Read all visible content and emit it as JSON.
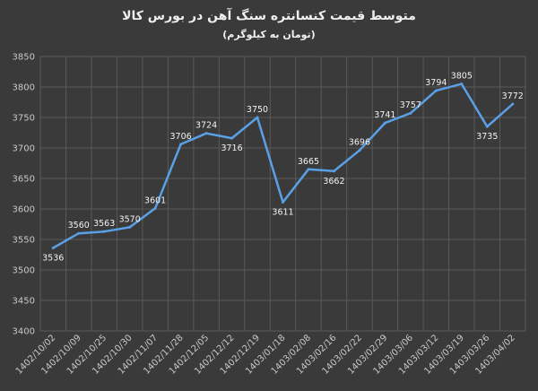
{
  "chart_data": {
    "type": "line",
    "title": "متوسط قیمت کنسانتره سنگ آهن در بورس کالا",
    "subtitle": "(تومان به کیلوگرم)",
    "xlabel": "",
    "ylabel": "",
    "ylim": [
      3400,
      3850
    ],
    "yticks": [
      3400,
      3450,
      3500,
      3550,
      3600,
      3650,
      3700,
      3750,
      3800,
      3850
    ],
    "grid": true,
    "categories": [
      "1402/10/02",
      "1402/10/09",
      "1402/10/25",
      "1402/10/30",
      "1402/11/07",
      "1402/11/28",
      "1402/12/05",
      "1402/12/12",
      "1402/12/19",
      "1403/01/18",
      "1403/02/08",
      "1403/02/16",
      "1403/02/22",
      "1403/02/29",
      "1403/03/06",
      "1403/03/12",
      "1403/03/19",
      "1403/03/26",
      "1403/04/02"
    ],
    "series": [
      {
        "values": [
          3536,
          3560,
          3563,
          3570,
          3601,
          3706,
          3724,
          3716,
          3750,
          3611,
          3665,
          3662,
          3696,
          3741,
          3757,
          3794,
          3805,
          3735,
          3772
        ]
      }
    ],
    "colors": {
      "line": "#5aa0e6",
      "background": "#3a3a3a",
      "grid": "#5a5a5a"
    }
  }
}
